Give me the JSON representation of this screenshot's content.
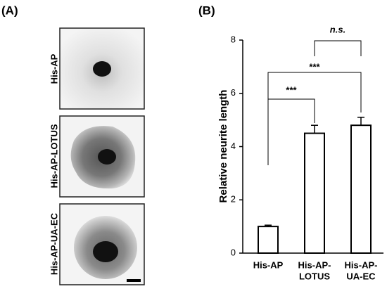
{
  "panels": {
    "a": "(A)",
    "b": "(B)"
  },
  "images": [
    {
      "label": "His-AP"
    },
    {
      "label": "His-AP-LOTUS"
    },
    {
      "label": "His-AP-UA-EC"
    }
  ],
  "chart_data": {
    "type": "bar",
    "ylabel": "Relative neurite length",
    "categories": [
      [
        "His-AP"
      ],
      [
        "His-AP-",
        "LOTUS"
      ],
      [
        "His-AP-",
        "UA-EC"
      ]
    ],
    "values": [
      1.0,
      4.5,
      4.8
    ],
    "errors": [
      0.05,
      0.3,
      0.3
    ],
    "color": "#ffffff",
    "ylim": [
      0,
      8
    ],
    "yticks": [
      0,
      2,
      4,
      6,
      8
    ],
    "annotations": [
      "***",
      "***",
      "n.s."
    ]
  }
}
